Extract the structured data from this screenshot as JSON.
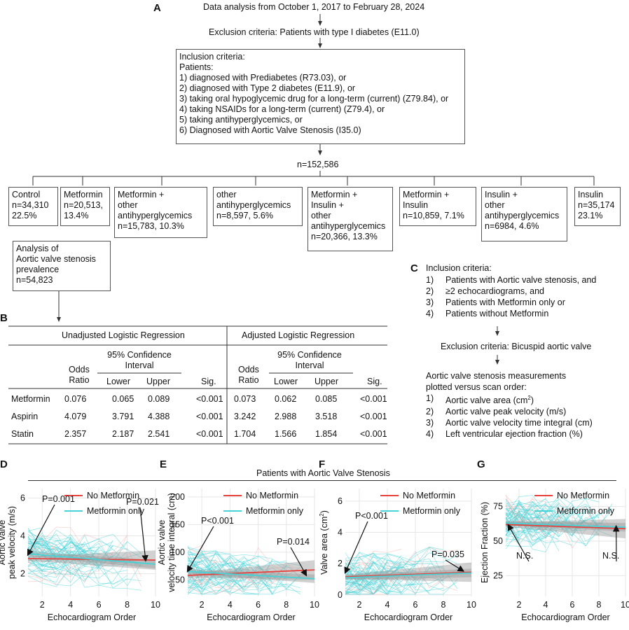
{
  "panels": {
    "A": "A",
    "B": "B",
    "C": "C",
    "D": "D",
    "E": "E",
    "F": "F",
    "G": "G"
  },
  "flow": {
    "top": "Data analysis from October 1, 2017 to February 28, 2024",
    "exclusion": "Exclusion criteria: Patients with type I diabetes (E11.0)",
    "inclusion_title": "Inclusion criteria:",
    "inclusion_sub": "Patients:",
    "inclusion_items": [
      "1) diagnosed with Prediabetes (R73.03), or",
      "2) diagnosed with Type 2 diabetes (E11.9), or",
      "3) taking oral hypoglycemic drug for a long-term (current) (Z79.84), or",
      "4) taking NSAIDs for a long-term (current) (Z79.4), or",
      "5) taking antihyperglycemics, or",
      "6) Diagnosed with Aortic Valve Stenosis (I35.0)"
    ],
    "total": "n=152,586",
    "groups": [
      {
        "lines": [
          "Control",
          "n=34,310",
          "22.5%"
        ]
      },
      {
        "lines": [
          "Metformin",
          "n=20,513,",
          "13.4%"
        ]
      },
      {
        "lines": [
          "Metformin +",
          "other",
          "antihyperglycemics",
          "n=15,783, 10.3%"
        ]
      },
      {
        "lines": [
          "other",
          "antihyperglycemics",
          "n=8,597, 5.6%"
        ]
      },
      {
        "lines": [
          "Metformin +",
          "Insulin +",
          "other",
          "antihyperglycemics",
          "n=20,366, 13.3%"
        ]
      },
      {
        "lines": [
          "Metformin +",
          "Insulin",
          "n=10,859, 7.1%"
        ]
      },
      {
        "lines": [
          "Insulin +",
          "other",
          "antihyperglycemics",
          "n=6984, 4.6%"
        ]
      },
      {
        "lines": [
          "Insulin",
          "n=35,174",
          "23.1%"
        ]
      }
    ],
    "analysis": [
      "Analysis of",
      "Aortic valve stenosis",
      "prevalence",
      "n=54,823"
    ]
  },
  "table": {
    "group_unadj": "Unadjusted Logistic Regression",
    "group_adj": "Adjusted Logistic Regression",
    "odds_ratio": [
      "Odds",
      "Ratio"
    ],
    "ci": [
      "95% Confidence",
      "Interval"
    ],
    "lower": "Lower",
    "upper": "Upper",
    "sig": "Sig.",
    "rows": [
      {
        "name": "Metformin",
        "v": [
          "0.076",
          "0.065",
          "0.089",
          "<0.001",
          "0.073",
          "0.062",
          "0.085",
          "<0.001"
        ]
      },
      {
        "name": "Aspirin",
        "v": [
          "4.079",
          "3.791",
          "4.388",
          "<0.001",
          "3.242",
          "2.988",
          "3.518",
          "<0.001"
        ]
      },
      {
        "name": "Statin",
        "v": [
          "2.357",
          "2.187",
          "2.541",
          "<0.001",
          "1.704",
          "1.566",
          "1.854",
          "<0.001"
        ]
      }
    ]
  },
  "criteria_c": {
    "title": "Inclusion criteria:",
    "items": [
      {
        "n": "1)",
        "t": "Patients with Aortic valve stenosis, and"
      },
      {
        "n": "2)",
        "t": "≥2 echocardiograms, and"
      },
      {
        "n": "3)",
        "t": "Patients with Metformin only or"
      },
      {
        "n": "4)",
        "t": "Patients without Metformin"
      }
    ],
    "exclusion": "Exclusion criteria: Bicuspid aortic valve",
    "measure_title": [
      "Aortic valve stenosis measurements",
      "plotted versus scan order:"
    ],
    "measures": [
      {
        "n": "1)",
        "t": "Aortic valve area (cm",
        "sup": "2",
        "t2": ")"
      },
      {
        "n": "2)",
        "t": "Aortic valve peak velocity (m/s)"
      },
      {
        "n": "3)",
        "t": "Aortic valve velocity time integral (cm)"
      },
      {
        "n": "4)",
        "t": "Left ventricular ejection fraction (%)"
      }
    ]
  },
  "plots_header": "Patients with Aortic Valve Stenosis",
  "legend": {
    "no_met": "No Metformin",
    "met_only": "Metformin only"
  },
  "colors": {
    "no_met": "#e8413b",
    "met_only": "#45d3d8",
    "band": "#9a9a9a"
  },
  "chart_data": [
    {
      "type": "line",
      "panel": "D",
      "ylabel": [
        "Aortic valve",
        "peak velocity (m/s)"
      ],
      "xlabel": "Echocardiogram Order",
      "xlim": [
        1,
        10
      ],
      "ylim": [
        0.8,
        6.5
      ],
      "xticks": [
        2,
        4,
        6,
        8,
        10
      ],
      "yticks": [
        2,
        4,
        6
      ],
      "series": [
        {
          "name": "No Metformin",
          "x": [
            1,
            10
          ],
          "y": [
            2.8,
            2.72
          ]
        },
        {
          "name": "Metformin only",
          "x": [
            1,
            10
          ],
          "y": [
            3.05,
            2.5
          ]
        }
      ],
      "annotations": [
        "P=0.001",
        "P=0.021"
      ]
    },
    {
      "type": "line",
      "panel": "E",
      "ylabel": [
        "Aortic valve",
        "velocity time integral (cm)"
      ],
      "xlabel": "Echocardiogram Order",
      "xlim": [
        1,
        10
      ],
      "ylim": [
        20,
        215
      ],
      "xticks": [
        2,
        4,
        6,
        8,
        10
      ],
      "yticks": [
        50,
        100,
        150,
        200
      ],
      "series": [
        {
          "name": "No Metformin",
          "x": [
            1,
            10
          ],
          "y": [
            58,
            68
          ]
        },
        {
          "name": "Metformin only",
          "x": [
            1,
            10
          ],
          "y": [
            65,
            52
          ]
        }
      ],
      "annotations": [
        "P<0.001",
        "P=0.014"
      ]
    },
    {
      "type": "line",
      "panel": "F",
      "ylabel": [
        "Valve area (cm",
        "2",
        ")"
      ],
      "xlabel": "Echocardiogram Order",
      "xlim": [
        1,
        10
      ],
      "ylim": [
        -0.1,
        6.8
      ],
      "xticks": [
        2,
        4,
        6,
        8,
        10
      ],
      "yticks": [
        0,
        2,
        4,
        6
      ],
      "series": [
        {
          "name": "No Metformin",
          "x": [
            1,
            10
          ],
          "y": [
            1.15,
            1.45
          ]
        },
        {
          "name": "Metformin only",
          "x": [
            1,
            10
          ],
          "y": [
            1.1,
            1.4
          ]
        }
      ],
      "annotations": [
        "P<0.001",
        "P=0.035"
      ]
    },
    {
      "type": "line",
      "panel": "G",
      "ylabel": [
        "Ejection Fraction (%)"
      ],
      "xlabel": "Echocardiogram Order",
      "xlim": [
        1,
        10
      ],
      "ylim": [
        10,
        88
      ],
      "xticks": [
        2,
        4,
        6,
        8,
        10
      ],
      "yticks": [
        25,
        50,
        75
      ],
      "series": [
        {
          "name": "No Metformin",
          "x": [
            1,
            10
          ],
          "y": [
            62,
            59
          ]
        },
        {
          "name": "Metformin only",
          "x": [
            1,
            10
          ],
          "y": [
            63,
            60
          ]
        }
      ],
      "annotations": [
        "N.S.",
        "N.S."
      ]
    }
  ]
}
